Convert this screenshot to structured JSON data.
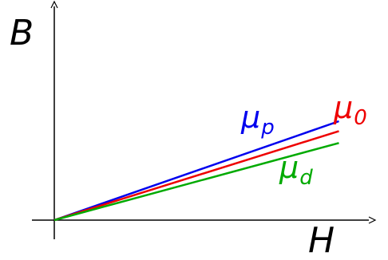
{
  "chart_data": {
    "type": "line",
    "xlabel": "H",
    "ylabel": "B",
    "series": [
      {
        "name": "μp",
        "label_main": "μ",
        "label_sub": "p",
        "color": "#0000ee",
        "x": [
          0,
          1
        ],
        "y": [
          0,
          0.5
        ]
      },
      {
        "name": "μ0",
        "label_main": "μ",
        "label_sub": "0",
        "color": "#ee0000",
        "x": [
          0,
          1
        ],
        "y": [
          0,
          0.45
        ]
      },
      {
        "name": "μd",
        "label_main": "μ",
        "label_sub": "d",
        "color": "#00aa00",
        "x": [
          0,
          1
        ],
        "y": [
          0,
          0.39
        ]
      }
    ],
    "xlim": [
      0,
      1.08
    ],
    "ylim": [
      0,
      1.0
    ],
    "grid": false,
    "axes_color": "#000000"
  }
}
